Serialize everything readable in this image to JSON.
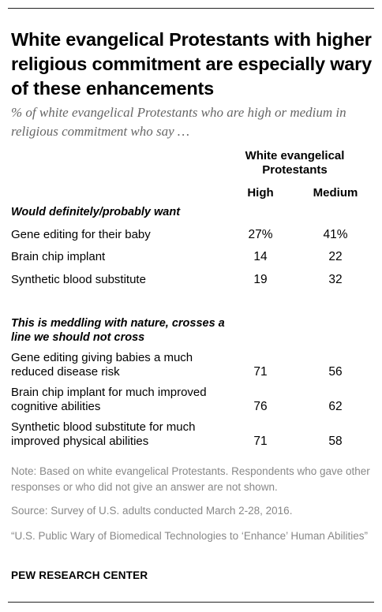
{
  "title": "White evangelical Protestants with higher religious commitment are especially wary of these enhancements",
  "subtitle": "% of white evangelical Protestants who are high or medium in religious commitment who say …",
  "chart_data": {
    "type": "table",
    "group_header": "White evangelical Protestants",
    "columns": [
      "High",
      "Medium"
    ],
    "sections": [
      {
        "label": "Would definitely/probably want",
        "rows": [
          {
            "label": "Gene editing for their baby",
            "high": "27%",
            "medium": "41%"
          },
          {
            "label": "Brain chip implant",
            "high": "14",
            "medium": "22"
          },
          {
            "label": "Synthetic blood substitute",
            "high": "19",
            "medium": "32"
          }
        ]
      },
      {
        "label": "This is meddling with nature, crosses a line we should not cross",
        "rows": [
          {
            "label": "Gene editing giving babies a much reduced disease risk",
            "high": "71",
            "medium": "56"
          },
          {
            "label": "Brain chip implant for much improved cognitive abilities",
            "high": "76",
            "medium": "62"
          },
          {
            "label": "Synthetic blood substitute for much improved physical abilities",
            "high": "71",
            "medium": "58"
          }
        ]
      }
    ]
  },
  "notes": {
    "note": "Note: Based on white evangelical Protestants. Respondents who gave other responses or who did not give an answer are not shown.",
    "source": "Source: Survey of U.S. adults conducted March 2-28, 2016.",
    "report": "“U.S. Public Wary of Biomedical Technologies to ‘Enhance’ Human Abilities”",
    "brand": "PEW RESEARCH CENTER"
  }
}
